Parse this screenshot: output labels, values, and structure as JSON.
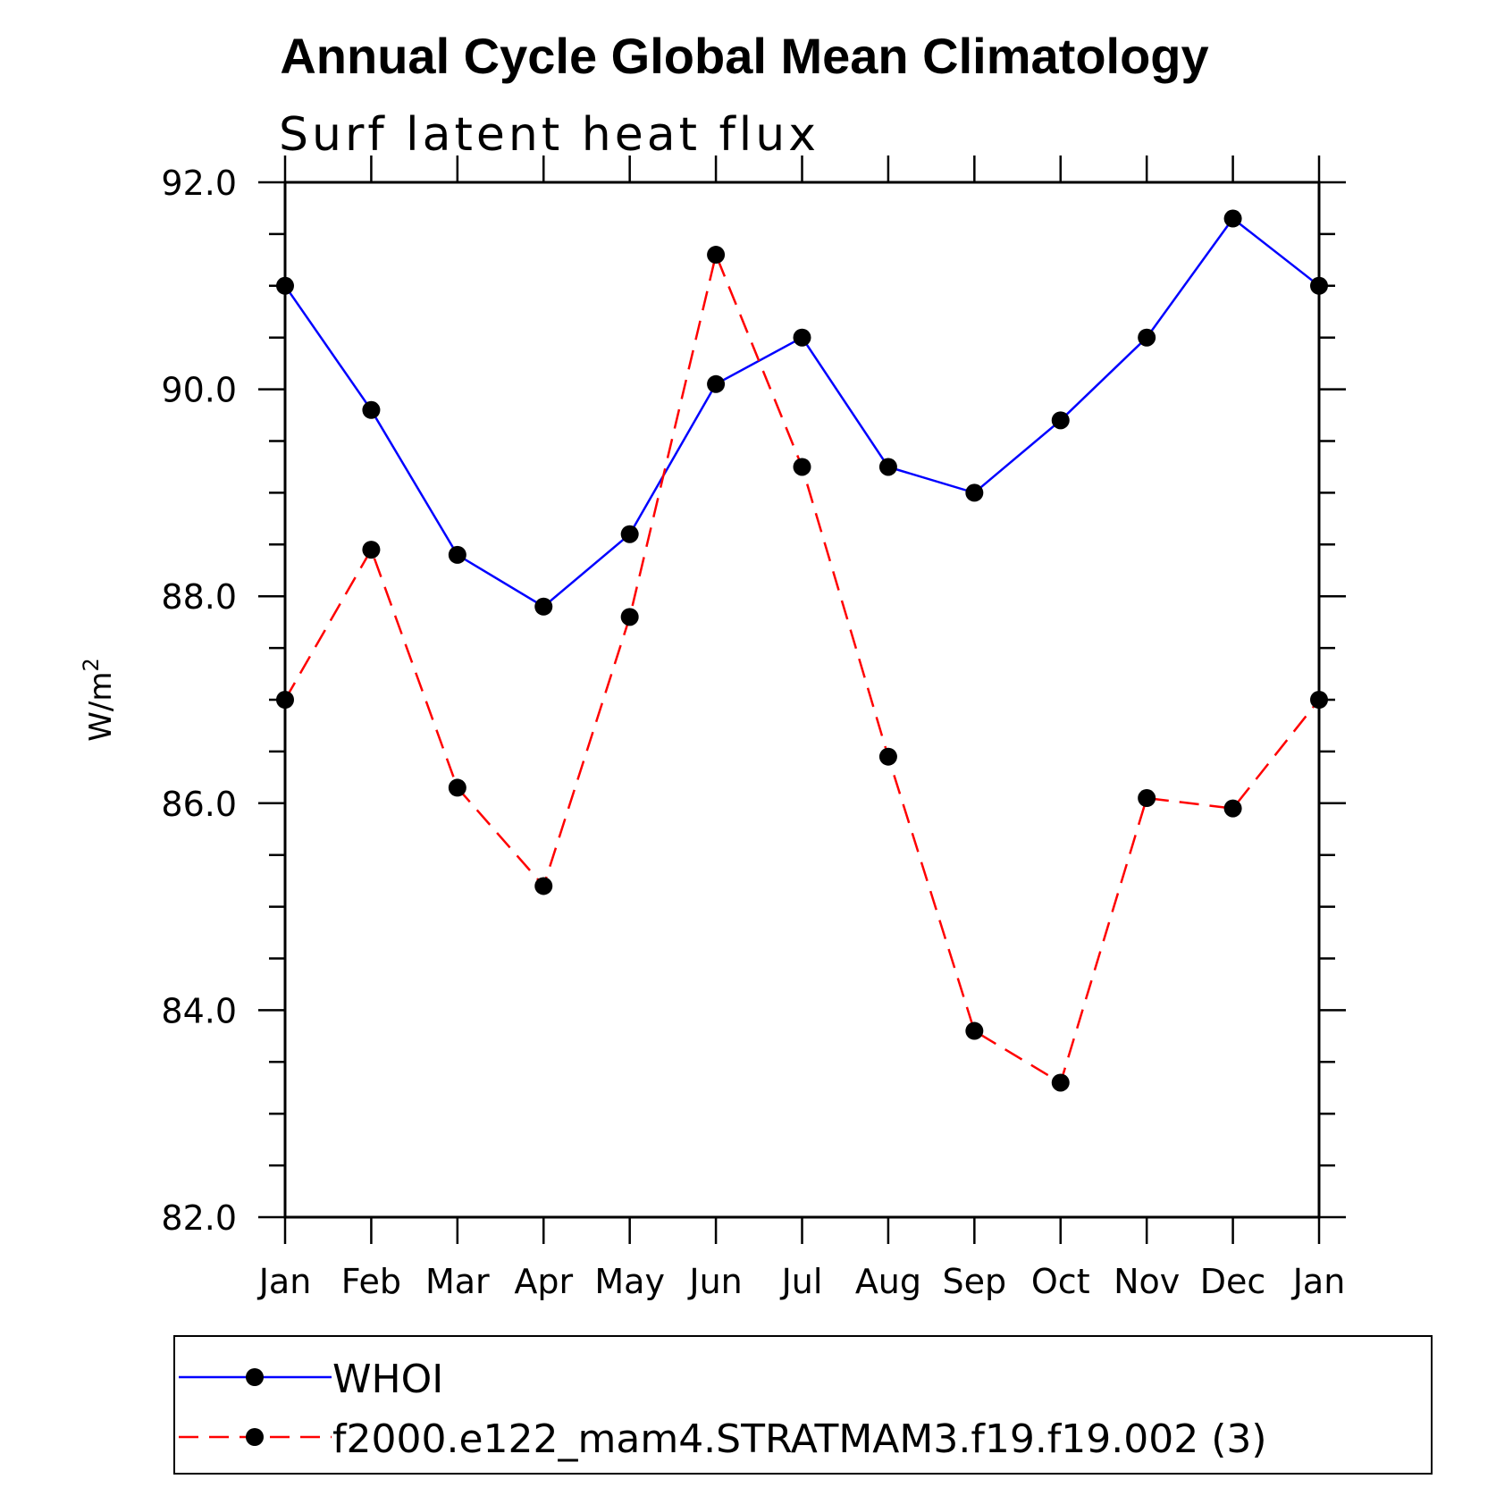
{
  "chart_data": {
    "type": "line",
    "title": "Annual Cycle Global Mean Climatology",
    "subtitle": "Surf latent heat flux",
    "xlabel": "",
    "ylabel": "W/m",
    "ylabel_superscript": "2",
    "categories": [
      "Jan",
      "Feb",
      "Mar",
      "Apr",
      "May",
      "Jun",
      "Jul",
      "Aug",
      "Sep",
      "Oct",
      "Nov",
      "Dec",
      "Jan"
    ],
    "ylim": [
      82.0,
      92.0
    ],
    "y_ticks": [
      82.0,
      84.0,
      86.0,
      88.0,
      90.0,
      92.0
    ],
    "y_tick_labels": [
      "82.0",
      "84.0",
      "86.0",
      "88.0",
      "90.0",
      "92.0"
    ],
    "y_minor_step": 0.5,
    "series": [
      {
        "name": "WHOI",
        "color": "#0000ff",
        "dash": "solid",
        "marker": "filled-circle",
        "values": [
          91.0,
          89.8,
          88.4,
          87.9,
          88.6,
          90.05,
          90.5,
          89.25,
          89.0,
          89.7,
          90.5,
          91.65,
          91.0
        ]
      },
      {
        "name": "f2000.e122_mam4.STRATMAM3.f19.f19.002 (3)",
        "color": "#ff0000",
        "dash": "dashed",
        "marker": "filled-circle",
        "values": [
          87.0,
          88.45,
          86.15,
          85.2,
          87.8,
          91.3,
          89.25,
          86.45,
          83.8,
          83.3,
          86.05,
          85.95,
          87.0
        ]
      }
    ],
    "legend_position": "bottom"
  }
}
